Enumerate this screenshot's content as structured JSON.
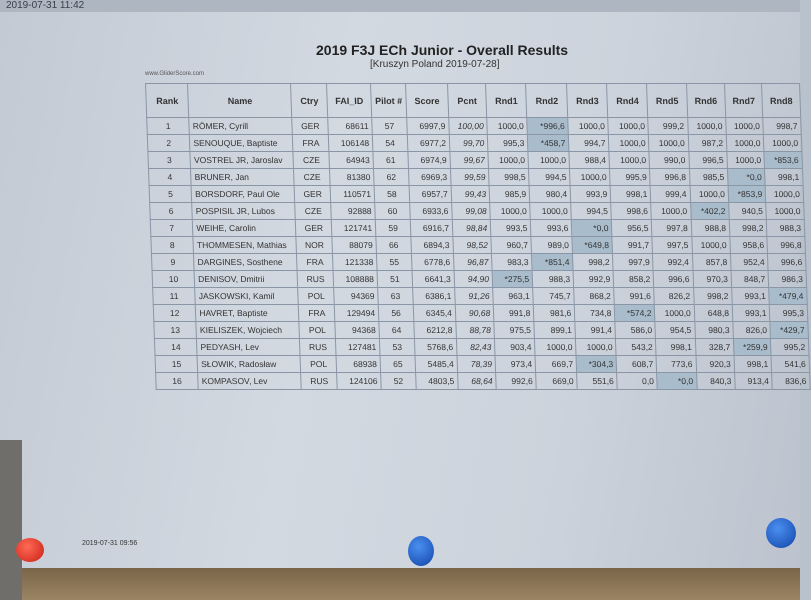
{
  "top_timestamp": "2019-07-31 11:42",
  "title": "2019 F3J ECh Junior - Overall Results",
  "subtitle": "[Kruszyn Poland 2019-07-28]",
  "site": "www.GliderScore.com",
  "footer_timestamp": "2019-07-31 09:56",
  "highlight_color": "#a9bccb",
  "columns": [
    "Rank",
    "Name",
    "Ctry",
    "FAI_ID",
    "Pilot #",
    "Score",
    "Pcnt",
    "Rnd1",
    "Rnd2",
    "Rnd3",
    "Rnd4",
    "Rnd5",
    "Rnd6",
    "Rnd7",
    "Rnd8"
  ],
  "rows": [
    [
      "1",
      "RÖMER, Cyrill",
      "GER",
      "68611",
      "57",
      "6997,9",
      "100,00",
      "1000,0",
      "*996,6",
      "1000,0",
      "1000,0",
      "999,2",
      "1000,0",
      "1000,0",
      "998,7"
    ],
    [
      "2",
      "SENOUQUE, Baptiste",
      "FRA",
      "106148",
      "54",
      "6977,2",
      "99,70",
      "995,3",
      "*458,7",
      "994,7",
      "1000,0",
      "1000,0",
      "987,2",
      "1000,0",
      "1000,0"
    ],
    [
      "3",
      "VOSTREL JR, Jaroslav",
      "CZE",
      "64943",
      "61",
      "6974,9",
      "99,67",
      "1000,0",
      "1000,0",
      "988,4",
      "1000,0",
      "990,0",
      "996,5",
      "1000,0",
      "*853,6"
    ],
    [
      "4",
      "BRUNER, Jan",
      "CZE",
      "81380",
      "62",
      "6969,3",
      "99,59",
      "998,5",
      "994,5",
      "1000,0",
      "995,9",
      "996,8",
      "985,5",
      "*0,0",
      "998,1"
    ],
    [
      "5",
      "BORSDORF, Paul Ole",
      "GER",
      "110571",
      "58",
      "6957,7",
      "99,43",
      "985,9",
      "980,4",
      "993,9",
      "998,1",
      "999,4",
      "1000,0",
      "*853,9",
      "1000,0"
    ],
    [
      "6",
      "POSPISIL JR, Lubos",
      "CZE",
      "92888",
      "60",
      "6933,6",
      "99,08",
      "1000,0",
      "1000,0",
      "994,5",
      "998,6",
      "1000,0",
      "*402,2",
      "940,5",
      "1000,0"
    ],
    [
      "7",
      "WEIHE, Carolin",
      "GER",
      "121741",
      "59",
      "6916,7",
      "98,84",
      "993,5",
      "993,6",
      "*0,0",
      "956,5",
      "997,8",
      "988,8",
      "998,2",
      "988,3"
    ],
    [
      "8",
      "THOMMESEN, Mathias",
      "NOR",
      "88079",
      "66",
      "6894,3",
      "98,52",
      "960,7",
      "989,0",
      "*649,8",
      "991,7",
      "997,5",
      "1000,0",
      "958,6",
      "996,8"
    ],
    [
      "9",
      "DARGINES, Sosthene",
      "FRA",
      "121338",
      "55",
      "6778,6",
      "96,87",
      "983,3",
      "*851,4",
      "998,2",
      "997,9",
      "992,4",
      "857,8",
      "952,4",
      "996,6"
    ],
    [
      "10",
      "DENISOV, Dmitrii",
      "RUS",
      "108888",
      "51",
      "6641,3",
      "94,90",
      "*275,5",
      "988,3",
      "992,9",
      "858,2",
      "996,6",
      "970,3",
      "848,7",
      "986,3"
    ],
    [
      "11",
      "JASKOWSKI, Kamil",
      "POL",
      "94369",
      "63",
      "6386,1",
      "91,26",
      "963,1",
      "745,7",
      "868,2",
      "991,6",
      "826,2",
      "998,2",
      "993,1",
      "*479,4"
    ],
    [
      "12",
      "HAVRET, Baptiste",
      "FRA",
      "129494",
      "56",
      "6345,4",
      "90,68",
      "991,8",
      "981,6",
      "734,8",
      "*574,2",
      "1000,0",
      "648,8",
      "993,1",
      "995,3"
    ],
    [
      "13",
      "KIELISZEK, Wojciech",
      "POL",
      "94368",
      "64",
      "6212,8",
      "88,78",
      "975,5",
      "899,1",
      "991,4",
      "586,0",
      "954,5",
      "980,3",
      "826,0",
      "*429,7"
    ],
    [
      "14",
      "PEDYASH, Lev",
      "RUS",
      "127481",
      "53",
      "5768,6",
      "82,43",
      "903,4",
      "1000,0",
      "1000,0",
      "543,2",
      "998,1",
      "328,7",
      "*259,9",
      "995,2"
    ],
    [
      "15",
      "SŁOWIK, Radosław",
      "POL",
      "68938",
      "65",
      "5485,4",
      "78,39",
      "973,4",
      "669,7",
      "*304,3",
      "608,7",
      "773,6",
      "920,3",
      "998,1",
      "541,6"
    ],
    [
      "16",
      "KOMPASOV, Lev",
      "RUS",
      "124106",
      "52",
      "4803,5",
      "68,64",
      "992,6",
      "669,0",
      "551,6",
      "0,0",
      "*0,0",
      "840,3",
      "913,4",
      "836,6"
    ]
  ]
}
